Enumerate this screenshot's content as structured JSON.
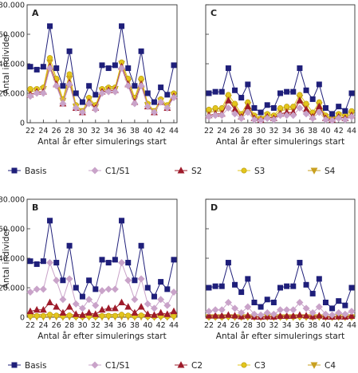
{
  "chart_data": [
    {
      "type": "line",
      "panel_label": "A",
      "ylabel": "Antal individer",
      "xlabel": "Antal år efter simulerings start",
      "ylim": [
        0,
        80000
      ],
      "yticks": [
        "0",
        "20.000",
        "40.000",
        "60.000",
        "80.000"
      ],
      "xticks": [
        "22",
        "24",
        "26",
        "28",
        "30",
        "32",
        "34",
        "36",
        "38",
        "40",
        "42",
        "44"
      ],
      "x": [
        22,
        23,
        24,
        25,
        26,
        27,
        28,
        29,
        30,
        31,
        32,
        33,
        34,
        35,
        36,
        37,
        38,
        39,
        40,
        41,
        42,
        43,
        44
      ],
      "series": [
        {
          "name": "Basis",
          "color": "#1f1f7a",
          "marker": "square",
          "values": [
            38000,
            36000,
            38000,
            65500,
            37000,
            25000,
            48500,
            20000,
            14000,
            25000,
            19000,
            39000,
            37000,
            39000,
            65500,
            37000,
            25000,
            48500,
            20000,
            14000,
            24000,
            19000,
            39000
          ]
        },
        {
          "name": "C1/S1",
          "color": "#c9a3c9",
          "marker": "diamond",
          "values": [
            18000,
            20000,
            20000,
            37000,
            25000,
            13000,
            26000,
            10000,
            7000,
            13000,
            9000,
            20000,
            21000,
            21000,
            37000,
            25000,
            13000,
            25000,
            11000,
            7000,
            14000,
            10000,
            17000
          ]
        },
        {
          "name": "S2",
          "color": "#9e1b2a",
          "marker": "triangle-up",
          "values": [
            19000,
            21000,
            21000,
            38000,
            26000,
            13000,
            27000,
            10000,
            7000,
            14000,
            10000,
            21000,
            22000,
            22000,
            38000,
            26000,
            14000,
            26000,
            11000,
            7000,
            14000,
            10000,
            18000
          ]
        },
        {
          "name": "S3",
          "color": "#e3c51c",
          "marker": "circle",
          "values": [
            23000,
            23000,
            24000,
            44000,
            30000,
            16000,
            33000,
            12000,
            8000,
            17000,
            12000,
            23000,
            24000,
            24000,
            41000,
            30000,
            17000,
            30000,
            13000,
            8000,
            16000,
            12000,
            20000
          ]
        },
        {
          "name": "S4",
          "color": "#c9a020",
          "marker": "triangle-down",
          "values": [
            21000,
            22000,
            23000,
            41000,
            28000,
            15000,
            30000,
            11000,
            8000,
            16000,
            11000,
            22000,
            23000,
            23000,
            40000,
            28000,
            16000,
            28000,
            12000,
            8000,
            15000,
            11000,
            19000
          ]
        }
      ]
    },
    {
      "type": "line",
      "panel_label": "C",
      "xlabel": "Antal år efter simulerings start",
      "ylim": [
        0,
        80000
      ],
      "xticks": [
        "22",
        "24",
        "26",
        "28",
        "30",
        "32",
        "34",
        "36",
        "38",
        "40",
        "42",
        "44"
      ],
      "x": [
        22,
        23,
        24,
        25,
        26,
        27,
        28,
        29,
        30,
        31,
        32,
        33,
        34,
        35,
        36,
        37,
        38,
        39,
        40,
        41,
        42,
        43,
        44
      ],
      "series": [
        {
          "name": "Basis",
          "color": "#1f1f7a",
          "marker": "square",
          "values": [
            20000,
            21000,
            21000,
            37000,
            22000,
            17000,
            26000,
            10000,
            7000,
            12000,
            10000,
            20000,
            21000,
            21000,
            37000,
            22000,
            16000,
            26000,
            10000,
            6000,
            11000,
            8000,
            20000
          ]
        },
        {
          "name": "C1/S1",
          "color": "#c9a3c9",
          "marker": "diamond",
          "values": [
            4000,
            5000,
            5000,
            10000,
            6000,
            3000,
            7000,
            2000,
            1500,
            3000,
            2000,
            5000,
            5000,
            5000,
            10000,
            6000,
            3000,
            7000,
            2000,
            1500,
            3000,
            2000,
            4000
          ]
        },
        {
          "name": "S2",
          "color": "#9e1b2a",
          "marker": "triangle-up",
          "values": [
            5000,
            6000,
            6000,
            15000,
            9000,
            4000,
            11000,
            3000,
            2000,
            4000,
            3000,
            6000,
            7000,
            7000,
            15000,
            9000,
            4000,
            11000,
            3000,
            2000,
            4000,
            3000,
            5000
          ]
        },
        {
          "name": "S3",
          "color": "#e3c51c",
          "marker": "circle",
          "values": [
            9000,
            10000,
            10000,
            19000,
            13000,
            6000,
            14000,
            5000,
            3000,
            6000,
            5000,
            10000,
            11000,
            11000,
            19000,
            13000,
            7000,
            14000,
            5000,
            3000,
            6000,
            5000,
            8000
          ]
        },
        {
          "name": "S4",
          "color": "#c9a020",
          "marker": "triangle-down",
          "values": [
            7000,
            8000,
            8000,
            17000,
            11000,
            5000,
            12000,
            4000,
            2500,
            5000,
            4000,
            8000,
            9000,
            9000,
            17000,
            11000,
            5000,
            12000,
            4000,
            2500,
            5000,
            4000,
            6000
          ]
        }
      ]
    },
    {
      "type": "line",
      "panel_label": "B",
      "ylabel": "Antal individer",
      "xlabel": "Antal år efter simulerings start",
      "ylim": [
        0,
        80000
      ],
      "yticks": [
        "0",
        "20.000",
        "40.000",
        "60.000",
        "80.000"
      ],
      "xticks": [
        "22",
        "24",
        "26",
        "28",
        "30",
        "32",
        "34",
        "36",
        "38",
        "40",
        "42",
        "44"
      ],
      "x": [
        22,
        23,
        24,
        25,
        26,
        27,
        28,
        29,
        30,
        31,
        32,
        33,
        34,
        35,
        36,
        37,
        38,
        39,
        40,
        41,
        42,
        43,
        44
      ],
      "series": [
        {
          "name": "Basis",
          "color": "#1f1f7a",
          "marker": "square",
          "values": [
            38000,
            36000,
            38000,
            65500,
            37000,
            25000,
            48500,
            20000,
            14000,
            25000,
            19000,
            39000,
            37000,
            39000,
            65500,
            37000,
            25000,
            48500,
            20000,
            14000,
            24000,
            19000,
            39000
          ]
        },
        {
          "name": "C1/S1",
          "color": "#c9a3c9",
          "marker": "diamond",
          "values": [
            17000,
            19000,
            19000,
            37000,
            25000,
            12000,
            26000,
            9000,
            6000,
            12000,
            8000,
            18000,
            19000,
            19000,
            37000,
            25000,
            12000,
            26000,
            9000,
            6000,
            12000,
            8000,
            17000
          ]
        },
        {
          "name": "C2",
          "color": "#9e1b2a",
          "marker": "triangle-up",
          "values": [
            4000,
            5000,
            5000,
            10000,
            7000,
            3000,
            7000,
            2000,
            1500,
            3000,
            2000,
            5000,
            6000,
            6000,
            10000,
            7000,
            3000,
            7000,
            2000,
            1500,
            3000,
            2000,
            4000
          ]
        },
        {
          "name": "C3",
          "color": "#e3c51c",
          "marker": "circle",
          "values": [
            800,
            900,
            900,
            1800,
            1200,
            600,
            1300,
            400,
            300,
            600,
            400,
            900,
            1000,
            1000,
            1800,
            1200,
            600,
            1300,
            400,
            300,
            600,
            400,
            800
          ]
        },
        {
          "name": "C4",
          "color": "#c9a020",
          "marker": "triangle-down",
          "values": [
            200,
            200,
            200,
            400,
            300,
            150,
            300,
            100,
            80,
            150,
            100,
            200,
            250,
            250,
            400,
            300,
            150,
            300,
            100,
            80,
            150,
            100,
            200
          ]
        }
      ]
    },
    {
      "type": "line",
      "panel_label": "D",
      "xlabel": "Antal år efter simulerings start",
      "ylim": [
        0,
        80000
      ],
      "xticks": [
        "22",
        "24",
        "26",
        "28",
        "30",
        "32",
        "34",
        "36",
        "38",
        "40",
        "42",
        "44"
      ],
      "x": [
        22,
        23,
        24,
        25,
        26,
        27,
        28,
        29,
        30,
        31,
        32,
        33,
        34,
        35,
        36,
        37,
        38,
        39,
        40,
        41,
        42,
        43,
        44
      ],
      "series": [
        {
          "name": "Basis",
          "color": "#1f1f7a",
          "marker": "square",
          "values": [
            20000,
            21000,
            21000,
            37000,
            22000,
            17000,
            26000,
            10000,
            7000,
            12000,
            10000,
            20000,
            21000,
            21000,
            37000,
            22000,
            16000,
            26000,
            10000,
            6000,
            11000,
            8000,
            20000
          ]
        },
        {
          "name": "C1/S1",
          "color": "#c9a3c9",
          "marker": "diamond",
          "values": [
            4000,
            5000,
            5000,
            10000,
            6000,
            3000,
            7000,
            2000,
            1500,
            3000,
            2000,
            5000,
            5000,
            5000,
            10000,
            6000,
            3000,
            7000,
            2000,
            1500,
            3000,
            2000,
            4000
          ]
        },
        {
          "name": "C2",
          "color": "#9e1b2a",
          "marker": "triangle-up",
          "values": [
            1000,
            1000,
            1000,
            1500,
            1000,
            500,
            1000,
            300,
            200,
            400,
            300,
            800,
            800,
            900,
            1500,
            1000,
            500,
            1000,
            300,
            200,
            400,
            300,
            800
          ]
        },
        {
          "name": "C3",
          "color": "#e3c51c",
          "marker": "circle",
          "values": [
            200,
            200,
            200,
            400,
            300,
            150,
            300,
            100,
            80,
            150,
            100,
            200,
            250,
            250,
            400,
            300,
            150,
            300,
            100,
            80,
            150,
            100,
            200
          ]
        },
        {
          "name": "C4",
          "color": "#c9a020",
          "marker": "triangle-down",
          "values": [
            50,
            50,
            50,
            100,
            80,
            40,
            80,
            30,
            20,
            40,
            30,
            50,
            60,
            60,
            100,
            80,
            40,
            80,
            30,
            20,
            40,
            30,
            50
          ]
        }
      ]
    }
  ],
  "legends": [
    {
      "entries": [
        {
          "label": "Basis",
          "color": "#1f1f7a",
          "marker": "square"
        },
        {
          "label": "C1/S1",
          "color": "#c9a3c9",
          "marker": "diamond"
        },
        {
          "label": "S2",
          "color": "#9e1b2a",
          "marker": "triangle-up"
        },
        {
          "label": "S3",
          "color": "#e3c51c",
          "marker": "circle"
        },
        {
          "label": "S4",
          "color": "#c9a020",
          "marker": "triangle-down"
        }
      ]
    },
    {
      "entries": [
        {
          "label": "Basis",
          "color": "#1f1f7a",
          "marker": "square"
        },
        {
          "label": "C1/S1",
          "color": "#c9a3c9",
          "marker": "diamond"
        },
        {
          "label": "C2",
          "color": "#9e1b2a",
          "marker": "triangle-up"
        },
        {
          "label": "C3",
          "color": "#e3c51c",
          "marker": "circle"
        },
        {
          "label": "C4",
          "color": "#c9a020",
          "marker": "triangle-down"
        }
      ]
    }
  ]
}
